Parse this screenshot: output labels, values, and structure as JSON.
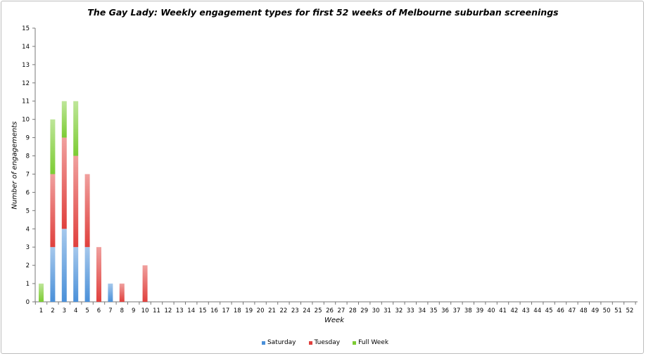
{
  "chart_data": {
    "type": "bar",
    "stacked": true,
    "title": "The Gay Lady: Weekly engagement types for first 52 weeks of Melbourne suburban screenings",
    "xlabel": "Week",
    "ylabel": "Number of engagements",
    "ylim": [
      0,
      15
    ],
    "yticks": [
      "0",
      "1",
      "2",
      "3",
      "4",
      "5",
      "6",
      "7",
      "8",
      "9",
      "10",
      "11",
      "12",
      "13",
      "14",
      "15"
    ],
    "categories": [
      "1",
      "2",
      "3",
      "4",
      "5",
      "6",
      "7",
      "8",
      "9",
      "10",
      "11",
      "12",
      "13",
      "14",
      "15",
      "16",
      "17",
      "18",
      "19",
      "20",
      "21",
      "22",
      "23",
      "24",
      "25",
      "26",
      "27",
      "28",
      "29",
      "30",
      "31",
      "32",
      "33",
      "34",
      "35",
      "36",
      "37",
      "38",
      "39",
      "40",
      "41",
      "42",
      "43",
      "44",
      "45",
      "46",
      "47",
      "48",
      "49",
      "50",
      "51",
      "52"
    ],
    "series": [
      {
        "name": "Saturday",
        "color": "#4a90d9",
        "values": [
          0,
          3,
          4,
          3,
          3,
          0,
          1,
          0,
          0,
          0,
          0,
          0,
          0,
          0,
          0,
          0,
          0,
          0,
          0,
          0,
          0,
          0,
          0,
          0,
          0,
          0,
          0,
          0,
          0,
          0,
          0,
          0,
          0,
          0,
          0,
          0,
          0,
          0,
          0,
          0,
          0,
          0,
          0,
          0,
          0,
          0,
          0,
          0,
          0,
          0,
          0,
          0
        ]
      },
      {
        "name": "Tuesday",
        "color": "#e0403d",
        "values": [
          0,
          4,
          5,
          5,
          4,
          3,
          0,
          1,
          0,
          2,
          0,
          0,
          0,
          0,
          0,
          0,
          0,
          0,
          0,
          0,
          0,
          0,
          0,
          0,
          0,
          0,
          0,
          0,
          0,
          0,
          0,
          0,
          0,
          0,
          0,
          0,
          0,
          0,
          0,
          0,
          0,
          0,
          0,
          0,
          0,
          0,
          0,
          0,
          0,
          0,
          0,
          0
        ]
      },
      {
        "name": "Full Week",
        "color": "#7ccc33",
        "values": [
          1,
          3,
          2,
          3,
          0,
          0,
          0,
          0,
          0,
          0,
          0,
          0,
          0,
          0,
          0,
          0,
          0,
          0,
          0,
          0,
          0,
          0,
          0,
          0,
          0,
          0,
          0,
          0,
          0,
          0,
          0,
          0,
          0,
          0,
          0,
          0,
          0,
          0,
          0,
          0,
          0,
          0,
          0,
          0,
          0,
          0,
          0,
          0,
          0,
          0,
          0,
          0
        ]
      }
    ],
    "grid": false,
    "legend": "bottom"
  }
}
